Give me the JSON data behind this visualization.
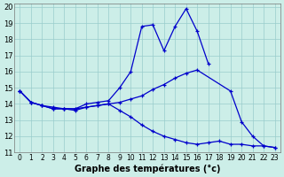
{
  "xlabel": "Graphe des températures (°c)",
  "background_color": "#cceee8",
  "line_color": "#0000cc",
  "grid_color": "#99cccc",
  "xlim": [
    -0.5,
    23.5
  ],
  "ylim": [
    11,
    20.2
  ],
  "yticks": [
    11,
    12,
    13,
    14,
    15,
    16,
    17,
    18,
    19,
    20
  ],
  "xticks": [
    0,
    1,
    2,
    3,
    4,
    5,
    6,
    7,
    8,
    9,
    10,
    11,
    12,
    13,
    14,
    15,
    16,
    17,
    18,
    19,
    20,
    21,
    22,
    23
  ],
  "line1_x": [
    0,
    1,
    2,
    3,
    4,
    5,
    6,
    7,
    8,
    9,
    10,
    11,
    12,
    13,
    14,
    15,
    16,
    17
  ],
  "line1_y": [
    14.8,
    14.1,
    13.9,
    13.8,
    13.7,
    13.7,
    14.0,
    14.1,
    14.2,
    15.0,
    16.0,
    18.8,
    18.9,
    17.3,
    18.8,
    19.9,
    18.5,
    16.5
  ],
  "line2_x": [
    0,
    1,
    2,
    3,
    4,
    5,
    6,
    7,
    8,
    9,
    10,
    11,
    12,
    13,
    14,
    15,
    16,
    19,
    20,
    21,
    22,
    23
  ],
  "line2_y": [
    14.8,
    14.1,
    13.9,
    13.7,
    13.7,
    13.7,
    13.8,
    13.9,
    14.0,
    14.1,
    14.3,
    14.5,
    14.9,
    15.2,
    15.6,
    15.9,
    16.1,
    14.8,
    12.9,
    12.0,
    11.4,
    11.3
  ],
  "line3_x": [
    0,
    1,
    2,
    3,
    4,
    5,
    6,
    7,
    8,
    9,
    10,
    11,
    12,
    13,
    14,
    15,
    16,
    17,
    18,
    19,
    20,
    21,
    22,
    23
  ],
  "line3_y": [
    14.8,
    14.1,
    13.9,
    13.7,
    13.7,
    13.6,
    13.8,
    13.9,
    14.0,
    13.6,
    13.2,
    12.7,
    12.3,
    12.0,
    11.8,
    11.6,
    11.5,
    11.6,
    11.7,
    11.5,
    11.5,
    11.4,
    11.4,
    11.3
  ]
}
